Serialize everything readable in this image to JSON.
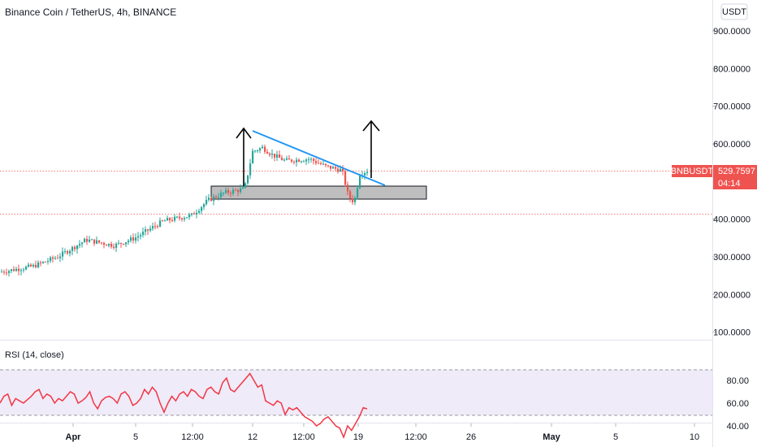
{
  "chart_title": "Binance Coin / TetherUS, 4h, BINANCE",
  "currency_button": "USDT",
  "symbol_badge": "BNBUSDT",
  "price_badge": "529.7597",
  "countdown_badge": "04:14",
  "rsi_label": "RSI (14, close)",
  "colors": {
    "up": "#26a69a",
    "down": "#ef5350",
    "trendline": "#2196f3",
    "rsi_line": "#f23645",
    "rsi_band": "#7e57c2",
    "badge": "#ef5350",
    "zone_fill": "#a8a8a8"
  },
  "chart_data": [
    {
      "type": "candlestick",
      "title": "Binance Coin / TetherUS, 4h, BINANCE",
      "y_ticks": [
        "900.0000",
        "800.0000",
        "700.0000",
        "600.0000",
        "400.0000",
        "300.0000",
        "200.0000",
        "100.0000"
      ],
      "ylim": [
        100,
        935
      ],
      "x_ticks": [
        "Apr",
        "5",
        "12:00",
        "12",
        "12:00",
        "19",
        "12:00",
        "26",
        "May",
        "5",
        "10"
      ],
      "last_price": 529.7597,
      "price_range": [
        260,
        600
      ],
      "trendline": {
        "from_price": 633,
        "to_price": 488
      },
      "support_zone": {
        "top_price": 490,
        "bottom_price": 455
      },
      "arrows": 2,
      "grid": false
    },
    {
      "type": "line",
      "name": "RSI (14, close)",
      "y_ticks": [
        "80.00",
        "60.00",
        "40.00"
      ],
      "ylim": [
        22,
        92
      ],
      "band": [
        30,
        70
      ],
      "values": [
        60,
        66,
        68,
        58,
        64,
        62,
        60,
        63,
        66,
        70,
        72,
        64,
        68,
        66,
        60,
        64,
        62,
        66,
        70,
        68,
        60,
        62,
        65,
        70,
        60,
        55,
        62,
        65,
        66,
        64,
        60,
        68,
        70,
        66,
        58,
        60,
        64,
        72,
        68,
        74,
        70,
        60,
        52,
        60,
        66,
        62,
        68,
        70,
        66,
        72,
        70,
        66,
        64,
        72,
        74,
        70,
        68,
        78,
        82,
        72,
        70,
        74,
        78,
        82,
        86,
        80,
        74,
        76,
        62,
        60,
        58,
        62,
        60,
        50,
        56,
        54,
        56,
        52,
        48,
        46,
        44,
        40,
        42,
        46,
        48,
        44,
        40,
        38,
        30,
        40,
        36,
        42,
        48,
        56,
        55
      ]
    }
  ]
}
